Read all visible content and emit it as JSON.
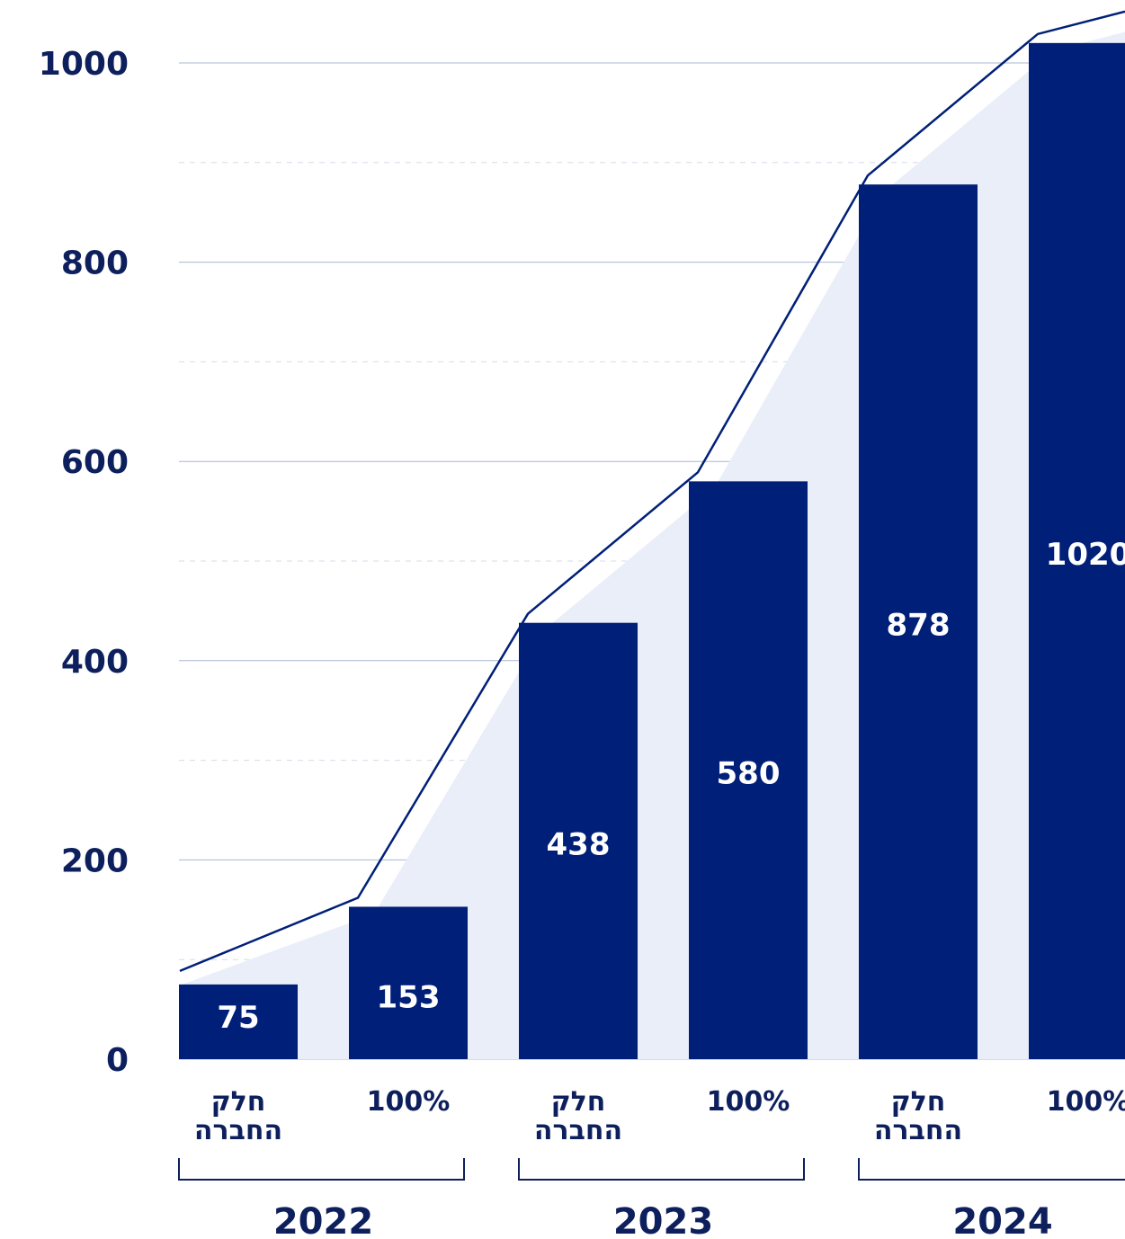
{
  "colors": {
    "bar": "#001f78",
    "text": "#0d1f5c",
    "bar_label": "#ffffff",
    "area": "#e9eef9",
    "line": "#001f78",
    "grid_major": "#a9b8d6",
    "grid_minor": "#d6dbe6"
  },
  "chart_data": {
    "type": "bar",
    "ylim": [
      0,
      1000
    ],
    "yticks": [
      "0",
      "200",
      "400",
      "600",
      "800",
      "1000"
    ],
    "grid": true,
    "categories": [
      {
        "label": "חלק\nהחברה",
        "group": "2022",
        "value": 75
      },
      {
        "label": "100%",
        "group": "2022",
        "value": 153
      },
      {
        "label": "חלק\nהחברה",
        "group": "2023",
        "value": 438
      },
      {
        "label": "100%",
        "group": "2023",
        "value": 580
      },
      {
        "label": "חלק\nהחברה",
        "group": "2024",
        "value": 878
      },
      {
        "label": "100%",
        "group": "2024",
        "value": 1020
      }
    ],
    "groups": [
      "2022",
      "2023",
      "2024"
    ]
  }
}
